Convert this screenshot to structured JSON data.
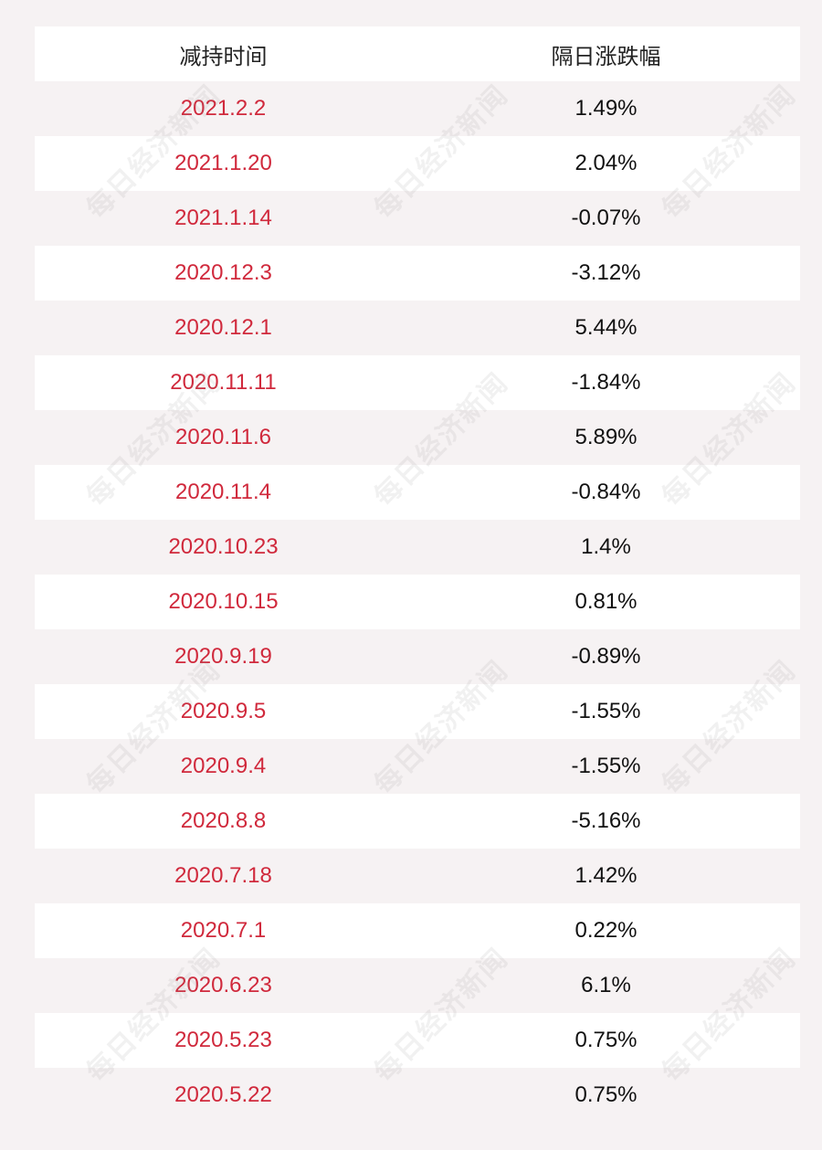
{
  "table": {
    "headers": {
      "date": "减持时间",
      "change": "隔日涨跌幅"
    },
    "rows": [
      {
        "date": "2021.2.2",
        "change": "1.49%"
      },
      {
        "date": "2021.1.20",
        "change": "2.04%"
      },
      {
        "date": "2021.1.14",
        "change": "-0.07%"
      },
      {
        "date": "2020.12.3",
        "change": "-3.12%"
      },
      {
        "date": "2020.12.1",
        "change": "5.44%"
      },
      {
        "date": "2020.11.11",
        "change": "-1.84%"
      },
      {
        "date": "2020.11.6",
        "change": "5.89%"
      },
      {
        "date": "2020.11.4",
        "change": "-0.84%"
      },
      {
        "date": "2020.10.23",
        "change": "1.4%"
      },
      {
        "date": "2020.10.15",
        "change": "0.81%"
      },
      {
        "date": "2020.9.19",
        "change": "-0.89%"
      },
      {
        "date": "2020.9.5",
        "change": "-1.55%"
      },
      {
        "date": "2020.9.4",
        "change": "-1.55%"
      },
      {
        "date": "2020.8.8",
        "change": "-5.16%"
      },
      {
        "date": "2020.7.18",
        "change": "1.42%"
      },
      {
        "date": "2020.7.1",
        "change": "0.22%"
      },
      {
        "date": "2020.6.23",
        "change": "6.1%"
      },
      {
        "date": "2020.5.23",
        "change": "0.75%"
      },
      {
        "date": "2020.5.22",
        "change": "0.75%"
      }
    ]
  },
  "watermark": {
    "text": "每日经济新闻"
  },
  "colors": {
    "date_text": "#d0293c",
    "value_text": "#111111",
    "page_background": "#f6f2f3",
    "row_white": "#ffffff"
  }
}
